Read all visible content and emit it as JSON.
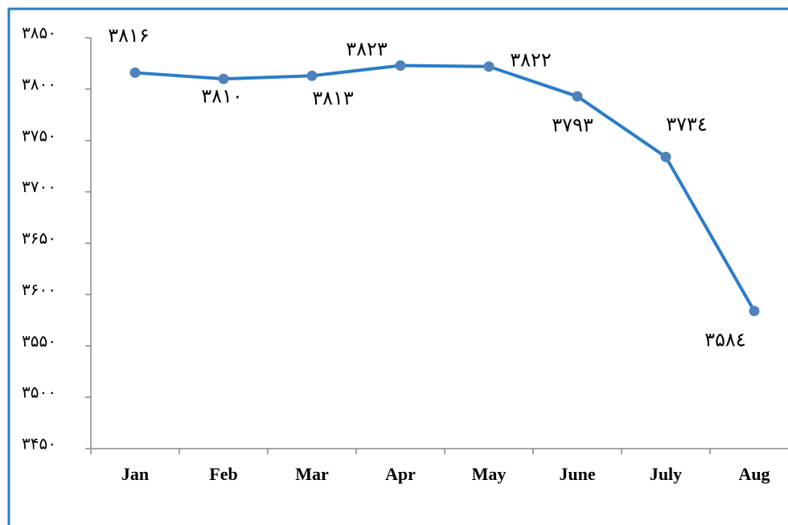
{
  "chart_data": {
    "type": "line",
    "categories": [
      "Jan",
      "Feb",
      "Mar",
      "Apr",
      "May",
      "June",
      "July",
      "Aug"
    ],
    "series": [
      {
        "color": "#2a7dc8",
        "values": [
          3816,
          3810,
          3813,
          3823,
          3822,
          3793,
          3734,
          3584
        ],
        "value_labels": [
          "۳۸۱۶",
          "۳۸۱۰",
          "۳۸۱۳",
          "۳۸۲۳",
          "۳۸۲۲",
          "۳۷۹۳",
          "۳۷۳٤",
          "۳۵۸٤"
        ]
      }
    ],
    "ylim": [
      3450,
      3850
    ],
    "yticks": [
      {
        "value": 3450,
        "label": "۳۴۵۰"
      },
      {
        "value": 3500,
        "label": "۳۵۰۰"
      },
      {
        "value": 3550,
        "label": "۳۵۵۰"
      },
      {
        "value": 3600,
        "label": "۳۶۰۰"
      },
      {
        "value": 3650,
        "label": "۳۶۵۰"
      },
      {
        "value": 3700,
        "label": "۳۷۰۰"
      },
      {
        "value": 3750,
        "label": "۳۷۵۰"
      },
      {
        "value": 3800,
        "label": "۳۸۰۰"
      },
      {
        "value": 3850,
        "label": "۳۸۵۰"
      }
    ],
    "grid": false
  }
}
